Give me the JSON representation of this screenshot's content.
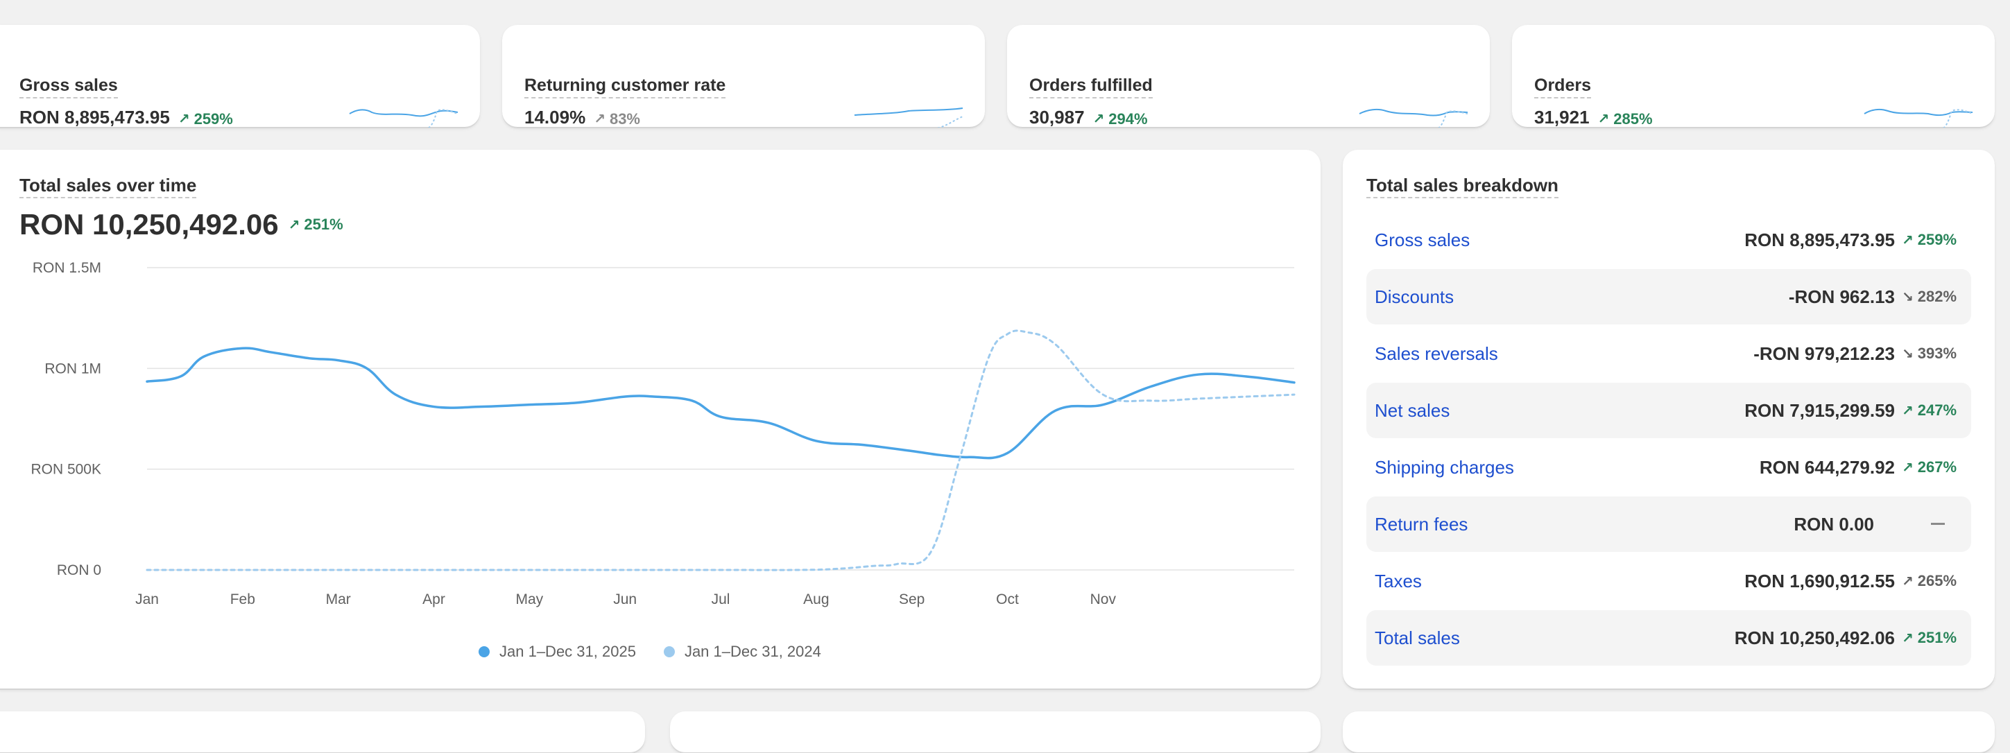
{
  "kpis": [
    {
      "title": "Gross sales",
      "value": "RON 8,895,473.95",
      "delta": "259%",
      "trend": "up",
      "color": "green"
    },
    {
      "title": "Returning customer rate",
      "value": "14.09%",
      "delta": "83%",
      "trend": "up",
      "color": "gray"
    },
    {
      "title": "Orders fulfilled",
      "value": "30,987",
      "delta": "294%",
      "trend": "up",
      "color": "green"
    },
    {
      "title": "Orders",
      "value": "31,921",
      "delta": "285%",
      "trend": "up",
      "color": "green"
    }
  ],
  "sales_chart": {
    "title": "Total sales over time",
    "value": "RON 10,250,492.06",
    "delta": "251%",
    "legend": [
      "Jan 1–Dec 31, 2025",
      "Jan 1–Dec 31, 2024"
    ],
    "colors": {
      "current": "#4aa4e6",
      "previous": "#9ccaee"
    }
  },
  "chart_data": {
    "type": "line",
    "ylim": [
      0,
      1500000
    ],
    "y_ticks": [
      {
        "value": 0,
        "label": "RON 0"
      },
      {
        "value": 500000,
        "label": "RON 500K"
      },
      {
        "value": 1000000,
        "label": "RON 1M"
      },
      {
        "value": 1500000,
        "label": "RON 1.5M"
      }
    ],
    "x_ticks": [
      "Jan",
      "Feb",
      "Mar",
      "Apr",
      "May",
      "Jun",
      "Jul",
      "Aug",
      "Sep",
      "Oct",
      "Nov"
    ],
    "grid": true,
    "legend_position": "bottom",
    "series": [
      {
        "name": "Jan 1–Dec 31, 2025",
        "style": "solid",
        "x": [
          0,
          0.35,
          0.6,
          1.0,
          1.3,
          1.7,
          2.0,
          2.3,
          2.6,
          3.0,
          3.5,
          4.0,
          4.5,
          5.0,
          5.3,
          5.7,
          6.0,
          6.5,
          7.0,
          7.5,
          8.0,
          8.3,
          8.6,
          9.0,
          9.5,
          10.0,
          10.5,
          11.0,
          11.5,
          12.0
        ],
        "y": [
          935000,
          960000,
          1060000,
          1100000,
          1080000,
          1050000,
          1040000,
          1000000,
          870000,
          810000,
          810000,
          820000,
          830000,
          860000,
          860000,
          840000,
          760000,
          730000,
          640000,
          620000,
          590000,
          570000,
          560000,
          580000,
          790000,
          820000,
          910000,
          970000,
          960000,
          930000
        ]
      },
      {
        "name": "Jan 1–Dec 31, 2024",
        "style": "dashed",
        "x": [
          0,
          1,
          2,
          3,
          4,
          5,
          6,
          6.8,
          7.2,
          7.6,
          7.85,
          8.2,
          8.5,
          8.8,
          9.0,
          9.2,
          9.5,
          10.0,
          10.5,
          11.0,
          11.5,
          12.0
        ],
        "y": [
          0,
          0,
          0,
          0,
          0,
          0,
          0,
          0,
          5000,
          20000,
          30000,
          90000,
          550000,
          1050000,
          1170000,
          1180000,
          1120000,
          870000,
          840000,
          850000,
          860000,
          870000
        ]
      }
    ]
  },
  "breakdown": {
    "title": "Total sales breakdown",
    "rows": [
      {
        "label": "Gross sales",
        "value": "RON 8,895,473.95",
        "delta": "259%",
        "trend": "up",
        "color": "green"
      },
      {
        "label": "Discounts",
        "value": "-RON 962.13",
        "delta": "282%",
        "trend": "down",
        "color": "gray"
      },
      {
        "label": "Sales reversals",
        "value": "-RON 979,212.23",
        "delta": "393%",
        "trend": "down",
        "color": "gray"
      },
      {
        "label": "Net sales",
        "value": "RON 7,915,299.59",
        "delta": "247%",
        "trend": "up",
        "color": "green"
      },
      {
        "label": "Shipping charges",
        "value": "RON 644,279.92",
        "delta": "267%",
        "trend": "up",
        "color": "green"
      },
      {
        "label": "Return fees",
        "value": "RON 0.00",
        "delta": "",
        "trend": "none",
        "color": "gray"
      },
      {
        "label": "Taxes",
        "value": "RON 1,690,912.55",
        "delta": "265%",
        "trend": "up",
        "color": "gray"
      },
      {
        "label": "Total sales",
        "value": "RON 10,250,492.06",
        "delta": "251%",
        "trend": "up",
        "color": "green"
      }
    ]
  }
}
